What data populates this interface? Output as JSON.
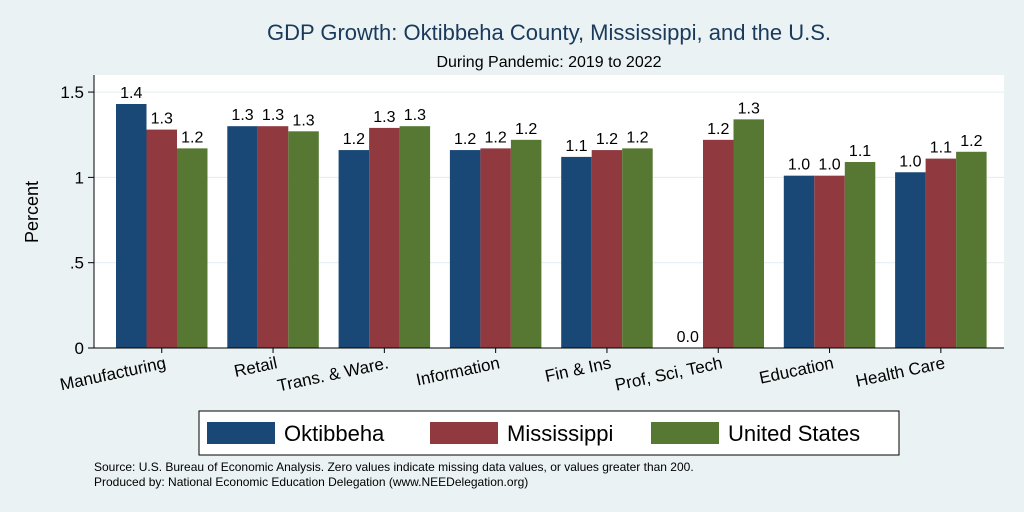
{
  "chart_data": {
    "type": "bar",
    "title": "GDP Growth: Oktibbeha County, Mississippi, and the U.S.",
    "subtitle": "During Pandemic: 2019 to 2022",
    "xlabel": "",
    "ylabel": "Percent",
    "ylim": [
      0,
      1.6
    ],
    "yticks": [
      0,
      0.5,
      1,
      1.5
    ],
    "ytick_labels": [
      "0",
      ".5",
      "1",
      "1.5"
    ],
    "grid": true,
    "legend_position": "bottom",
    "categories": [
      "Manufacturing",
      "Retail",
      "Trans. & Ware.",
      "Information",
      "Fin & Ins",
      "Prof, Sci, Tech",
      "Education",
      "Health Care"
    ],
    "series": [
      {
        "name": "Oktibbeha",
        "color": "#1a4876",
        "values": [
          1.43,
          1.3,
          1.16,
          1.16,
          1.12,
          0.0,
          1.01,
          1.03
        ],
        "labels": [
          "1.4",
          "1.3",
          "1.2",
          "1.2",
          "1.1",
          "0.0",
          "1.0",
          "1.0"
        ]
      },
      {
        "name": "Mississippi",
        "color": "#903a40",
        "values": [
          1.28,
          1.3,
          1.29,
          1.17,
          1.16,
          1.22,
          1.01,
          1.11
        ],
        "labels": [
          "1.3",
          "1.3",
          "1.3",
          "1.2",
          "1.2",
          "1.2",
          "1.0",
          "1.1"
        ]
      },
      {
        "name": "United States",
        "color": "#567833",
        "values": [
          1.17,
          1.27,
          1.3,
          1.22,
          1.17,
          1.34,
          1.09,
          1.15
        ],
        "labels": [
          "1.2",
          "1.3",
          "1.3",
          "1.2",
          "1.2",
          "1.3",
          "1.1",
          "1.2"
        ]
      }
    ]
  },
  "footer": {
    "source": "Source: U.S. Bureau of Economic Analysis. Zero values indicate missing data values, or values greater than 200.",
    "produced_by": "Produced by: National Economic Education Delegation (www.NEEDelegation.org)"
  }
}
